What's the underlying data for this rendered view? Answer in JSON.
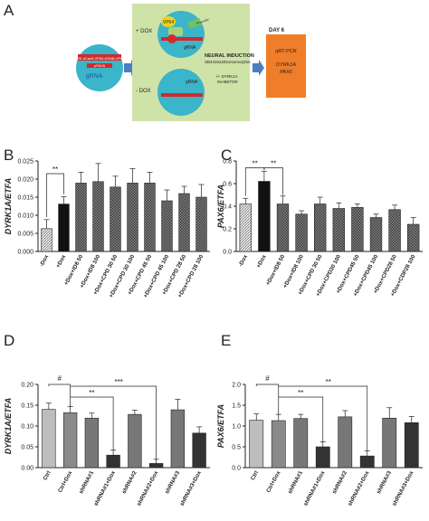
{
  "panel_letters": [
    "A",
    "B",
    "C",
    "D",
    "E"
  ],
  "schematic": {
    "plus_dox": "+ DOX",
    "minus_dox": "- DOX",
    "neural_induction": "NEURAL INDUCTION",
    "neural_induction_sub": "SB431542/Dorsomorphin",
    "inhibitor_line1": "+/- DYRK1A",
    "inhibitor_line2": "INHIBITOR",
    "day6": "DAY 6",
    "qrtpcr": "qRT-PCR",
    "dyrk1a": "DYRK1A",
    "pax6": "PAX6",
    "cell_gene": "TRE-dCas9-VP64-KRAB-VP64",
    "cell_gene2": "pPAX6",
    "grna": "gRNA",
    "vp64": "VP64",
    "promoter": "Promoter",
    "colors": {
      "green_panel": "#cfe3a8",
      "cell": "#3ab5c9",
      "orange": "#ef7d2a",
      "red": "#d22a2a"
    }
  },
  "chart_data": [
    {
      "id": "B",
      "type": "bar",
      "ylabel": "DYRK1A/ETFA",
      "ylim": [
        0,
        0.025
      ],
      "yticks": [
        "0.000",
        "0.005",
        "0.010",
        "0.015",
        "0.020",
        "0.025"
      ],
      "categories": [
        "-Dox",
        "+Dox",
        "+Dox+ID8 50",
        "+Dox+ID8 100",
        "+Dox+CPD 30 50",
        "+Dox+CPD 30 100",
        "+Dox+CPD 45 50",
        "+Dox+CPD 45 100",
        "+Dox+CPD 28 50",
        "+Dox+CPD 28 100"
      ],
      "values": [
        0.0063,
        0.0131,
        0.0189,
        0.0193,
        0.0178,
        0.0189,
        0.0189,
        0.014,
        0.016,
        0.015
      ],
      "errors": [
        0.0025,
        0.002,
        0.003,
        0.005,
        0.003,
        0.004,
        0.003,
        0.003,
        0.002,
        0.0035
      ],
      "annotations": [
        "**"
      ]
    },
    {
      "id": "C",
      "type": "bar",
      "ylabel": "PAX6/ETFA",
      "ylim": [
        0,
        0.8
      ],
      "yticks": [
        "0.0",
        "0.2",
        "0.4",
        "0.6",
        "0.8"
      ],
      "categories": [
        "-Dox",
        "+Dox",
        "+Dox+ID8 50",
        "+Dox+ID8 100",
        "+Dox+CPD 30 50",
        "+Dox+CPD30 100",
        "+Dox+CPD45 50",
        "+Dox+CPD45 100",
        "+Dox+CPD28 50",
        "+Dox+CDP28 100"
      ],
      "values": [
        0.42,
        0.62,
        0.42,
        0.33,
        0.42,
        0.38,
        0.39,
        0.3,
        0.37,
        0.24
      ],
      "errors": [
        0.05,
        0.09,
        0.07,
        0.03,
        0.06,
        0.05,
        0.03,
        0.03,
        0.04,
        0.06
      ],
      "annotations": [
        "**",
        "**"
      ]
    },
    {
      "id": "D",
      "type": "bar",
      "ylabel": "DYRK1A/ETFA",
      "ylim": [
        0,
        0.2
      ],
      "yticks": [
        "0.00",
        "0.05",
        "0.10",
        "0.15",
        "0.20"
      ],
      "categories": [
        "Ctrl",
        "Ctrl+Dox",
        "shRNA#1",
        "shRNA#1+Dox",
        "shRNA#2",
        "shRNA#2+Dox",
        "shRNA#3",
        "shRNA#3+Dox"
      ],
      "values": [
        0.14,
        0.132,
        0.119,
        0.03,
        0.128,
        0.01,
        0.139,
        0.083
      ],
      "errors": [
        0.015,
        0.015,
        0.012,
        0.012,
        0.01,
        0.01,
        0.025,
        0.015
      ],
      "annotations": [
        "#",
        "**",
        "***"
      ]
    },
    {
      "id": "E",
      "type": "bar",
      "ylabel": "PAX6/ETFA",
      "ylim": [
        0,
        2.0
      ],
      "yticks": [
        "0.0",
        "0.5",
        "1.0",
        "1.5",
        "2.0"
      ],
      "categories": [
        "Ctrl",
        "Ctrl+Dox",
        "shRNA#1",
        "shRNA#1+Dox",
        "shRNA#2",
        "shRNA#2+Dox",
        "shRNA#3",
        "shRNA#3+Dox"
      ],
      "values": [
        1.14,
        1.13,
        1.18,
        0.5,
        1.22,
        0.28,
        1.19,
        1.08
      ],
      "errors": [
        0.15,
        0.15,
        0.1,
        0.12,
        0.15,
        0.12,
        0.25,
        0.15
      ],
      "annotations": [
        "#",
        "**",
        "**"
      ]
    }
  ]
}
